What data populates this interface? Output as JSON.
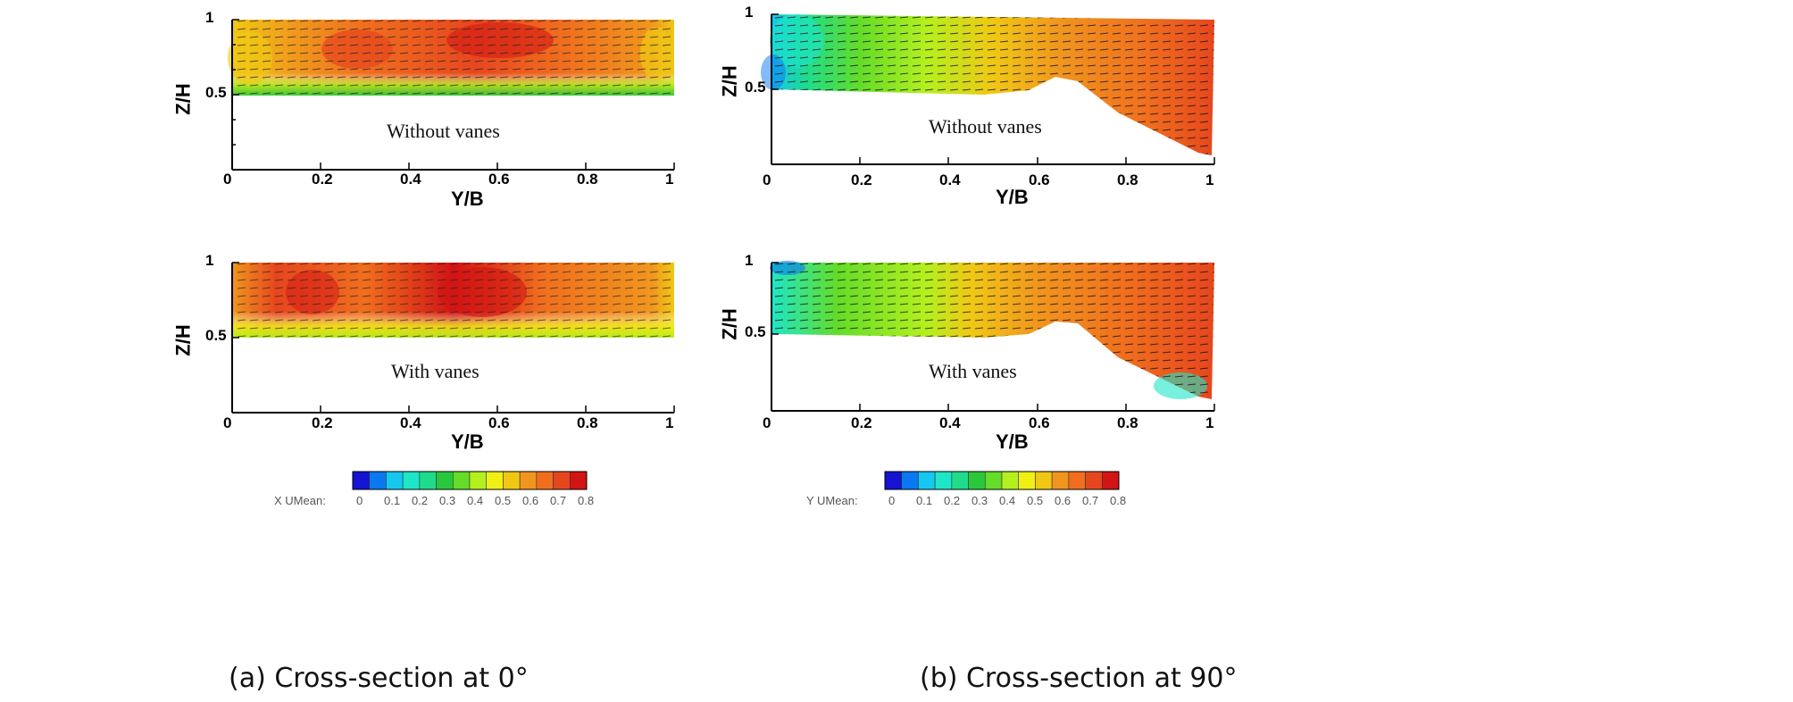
{
  "panels": [
    {
      "ylabel": "Z/H",
      "xlabel": "Y/B",
      "label": "Without vanes",
      "yticks": [
        "1",
        "0.5"
      ],
      "xticks": [
        "0",
        "0.2",
        "0.4",
        "0.6",
        "0.8",
        "1"
      ]
    },
    {
      "ylabel": "Z/H",
      "xlabel": "Y/B",
      "label": "Without vanes",
      "yticks": [
        "1",
        "0.5"
      ],
      "xticks": [
        "0",
        "0.2",
        "0.4",
        "0.6",
        "0.8",
        "1"
      ]
    },
    {
      "ylabel": "Z/H",
      "xlabel": "Y/B",
      "label": "With vanes",
      "yticks": [
        "1",
        "0.5"
      ],
      "xticks": [
        "0",
        "0.2",
        "0.4",
        "0.6",
        "0.8",
        "1"
      ]
    },
    {
      "ylabel": "Z/H",
      "xlabel": "Y/B",
      "label": "With vanes",
      "yticks": [
        "1",
        "0.5"
      ],
      "xticks": [
        "0",
        "0.2",
        "0.4",
        "0.6",
        "0.8",
        "1"
      ]
    }
  ],
  "colorbars": [
    {
      "label": "X UMean:",
      "ticks": [
        "0",
        "0.1",
        "0.2",
        "0.3",
        "0.4",
        "0.5",
        "0.6",
        "0.7",
        "0.8"
      ]
    },
    {
      "label": "Y UMean:",
      "ticks": [
        "0",
        "0.1",
        "0.2",
        "0.3",
        "0.4",
        "0.5",
        "0.6",
        "0.7",
        "0.8"
      ]
    }
  ],
  "colors": [
    "#1414d2",
    "#0a78f0",
    "#14c8f0",
    "#1ee6c8",
    "#1edc8c",
    "#28c83c",
    "#64dc28",
    "#b4f01e",
    "#f0f014",
    "#f0c814",
    "#f0961e",
    "#f06e1e",
    "#e6461e",
    "#d21414"
  ],
  "captions": {
    "a": "(a) Cross-section at 0°",
    "b": "(b) Cross-section at 90°"
  }
}
